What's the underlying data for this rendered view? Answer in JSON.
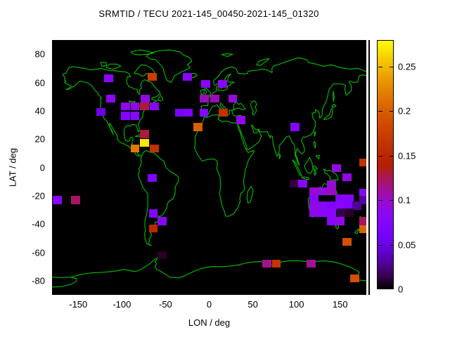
{
  "title": "SRMTID / TECU 2021-145_00450-2021-145_01320",
  "axes": {
    "xlabel": "LON / deg",
    "ylabel": "LAT / deg",
    "x_ticks": [
      -150,
      -100,
      -50,
      0,
      50,
      100,
      150
    ],
    "y_ticks": [
      80,
      60,
      40,
      20,
      0,
      -20,
      -40,
      -60,
      -80
    ],
    "xlim": [
      -180,
      180
    ],
    "ylim": [
      -90,
      90
    ]
  },
  "colorbar": {
    "ticks": [
      "0",
      "0.05",
      "0.1",
      "0.15",
      "0.2",
      "0.25"
    ],
    "tick_values": [
      0,
      0.05,
      0.1,
      0.15,
      0.2,
      0.25
    ],
    "min": 0,
    "max": 0.28,
    "palette": "gnuplot-default-rgbformulae-7-5-15"
  },
  "colors": {
    "background": "#ffffff",
    "map_background": "#000000",
    "coastline": "#00be00",
    "text": "#000000"
  },
  "chart_data": {
    "type": "heatmap",
    "title": "SRMTID / TECU 2021-145_00450-2021-145_01320",
    "xlabel": "LON / deg",
    "ylabel": "LAT / deg",
    "value_units": "TECU",
    "value_range": [
      0,
      0.28
    ],
    "cell_size_deg": {
      "lon": 10.3,
      "lat": 5.6
    },
    "cells": [
      {
        "lon": -115,
        "lat": 63,
        "value": 0.082
      },
      {
        "lon": -65,
        "lat": 64,
        "value": 0.174
      },
      {
        "lon": -25,
        "lat": 64,
        "value": 0.08
      },
      {
        "lon": -4,
        "lat": 59,
        "value": 0.08
      },
      {
        "lon": 15,
        "lat": 59,
        "value": 0.08
      },
      {
        "lon": -113,
        "lat": 48.5,
        "value": 0.086
      },
      {
        "lon": -73,
        "lat": 48.5,
        "value": 0.092
      },
      {
        "lon": -96,
        "lat": 43,
        "value": 0.088
      },
      {
        "lon": -85,
        "lat": 43,
        "value": 0.09
      },
      {
        "lon": -74,
        "lat": 43,
        "value": 0.129
      },
      {
        "lon": -63,
        "lat": 43,
        "value": 0.078
      },
      {
        "lon": -96,
        "lat": 36.5,
        "value": 0.07
      },
      {
        "lon": -85,
        "lat": 36.5,
        "value": 0.078
      },
      {
        "lon": -124,
        "lat": 39,
        "value": 0.05
      },
      {
        "lon": -34,
        "lat": 38.5,
        "value": 0.062
      },
      {
        "lon": -24,
        "lat": 38.5,
        "value": 0.07
      },
      {
        "lon": -5.5,
        "lat": 48.5,
        "value": 0.104
      },
      {
        "lon": 6.5,
        "lat": 48.5,
        "value": 0.104
      },
      {
        "lon": 27,
        "lat": 48.5,
        "value": 0.095
      },
      {
        "lon": -6,
        "lat": 38.5,
        "value": 0.075
      },
      {
        "lon": 16,
        "lat": 38.5,
        "value": 0.162
      },
      {
        "lon": 36,
        "lat": 33.5,
        "value": 0.09
      },
      {
        "lon": -13,
        "lat": 28.5,
        "value": 0.202
      },
      {
        "lon": 98,
        "lat": 28.5,
        "value": 0.072
      },
      {
        "lon": -74,
        "lat": 23.5,
        "value": 0.129
      },
      {
        "lon": -74,
        "lat": 17.5,
        "value": 0.272
      },
      {
        "lon": -85,
        "lat": 13.5,
        "value": 0.218
      },
      {
        "lon": -63,
        "lat": 13.5,
        "value": 0.16
      },
      {
        "lon": 177,
        "lat": 3.5,
        "value": 0.16
      },
      {
        "lon": -65,
        "lat": -7.5,
        "value": 0.07
      },
      {
        "lon": 146,
        "lat": -0.5,
        "value": 0.092
      },
      {
        "lon": 158,
        "lat": -7,
        "value": 0.092
      },
      {
        "lon": 97,
        "lat": -11.5,
        "value": 0.011
      },
      {
        "lon": 107,
        "lat": -11.5,
        "value": 0.078
      },
      {
        "lon": 140,
        "lat": -12,
        "value": 0.095
      },
      {
        "lon": -174,
        "lat": -23,
        "value": 0.078
      },
      {
        "lon": -153,
        "lat": -23,
        "value": 0.122
      },
      {
        "lon": 120,
        "lat": -17,
        "value": 0.098
      },
      {
        "lon": 130,
        "lat": -17,
        "value": 0.092
      },
      {
        "lon": 140,
        "lat": -17,
        "value": 0.1
      },
      {
        "lon": 177,
        "lat": -18,
        "value": 0.078
      },
      {
        "lon": 120,
        "lat": -22,
        "value": 0.078
      },
      {
        "lon": 150,
        "lat": -22,
        "value": 0.075
      },
      {
        "lon": 160,
        "lat": -22,
        "value": 0.075
      },
      {
        "lon": 177,
        "lat": -23,
        "value": 0.031
      },
      {
        "lon": 120,
        "lat": -27,
        "value": 0.09
      },
      {
        "lon": 130,
        "lat": -27,
        "value": 0.08
      },
      {
        "lon": 140,
        "lat": -27,
        "value": 0.072
      },
      {
        "lon": 150,
        "lat": -27,
        "value": 0.078
      },
      {
        "lon": 160,
        "lat": -27,
        "value": 0.07
      },
      {
        "lon": 169,
        "lat": -27,
        "value": 0.029
      },
      {
        "lon": 120,
        "lat": -32,
        "value": 0.088
      },
      {
        "lon": 130,
        "lat": -32,
        "value": 0.08
      },
      {
        "lon": 140,
        "lat": -32,
        "value": 0.078
      },
      {
        "lon": 151,
        "lat": -32,
        "value": 0.014
      },
      {
        "lon": 160,
        "lat": -32,
        "value": 0.007
      },
      {
        "lon": 140,
        "lat": -38,
        "value": 0.078
      },
      {
        "lon": 150,
        "lat": -38,
        "value": 0.09
      },
      {
        "lon": 177,
        "lat": -38,
        "value": 0.123
      },
      {
        "lon": 177,
        "lat": -43.5,
        "value": 0.204
      },
      {
        "lon": -64,
        "lat": -32.5,
        "value": 0.07
      },
      {
        "lon": -54,
        "lat": -38,
        "value": 0.076
      },
      {
        "lon": -64,
        "lat": -43,
        "value": 0.15
      },
      {
        "lon": -54,
        "lat": -62,
        "value": 0.007
      },
      {
        "lon": 158,
        "lat": -52.5,
        "value": 0.19
      },
      {
        "lon": 66,
        "lat": -68,
        "value": 0.115
      },
      {
        "lon": 77,
        "lat": -68,
        "value": 0.165
      },
      {
        "lon": 117,
        "lat": -68,
        "value": 0.112
      },
      {
        "lon": 167,
        "lat": -78.5,
        "value": 0.19
      }
    ]
  }
}
